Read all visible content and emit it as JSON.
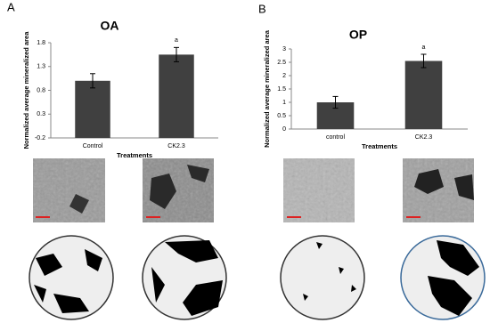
{
  "chart_data": [
    {
      "type": "bar",
      "panel_label": "A",
      "title": "OA",
      "y_label": "Normalized average mineralized area",
      "x_label": "Treatments",
      "categories": [
        "Control",
        "CK2.3"
      ],
      "values": [
        1.0,
        1.55
      ],
      "errors": [
        0.15,
        0.15
      ],
      "value_annotations": [
        null,
        "a"
      ],
      "color": "#404040",
      "ylim": [
        -0.2,
        1.8
      ],
      "yticks": [
        -0.2,
        0.3,
        0.8,
        1.3,
        1.8
      ]
    },
    {
      "type": "bar",
      "panel_label": "B",
      "title": "OP",
      "y_label": "Normalized average mineralized area",
      "x_label": "Treatments",
      "categories": [
        "control",
        "CK2.3"
      ],
      "values": [
        1.0,
        2.55
      ],
      "errors": [
        0.22,
        0.25
      ],
      "value_annotations": [
        null,
        "a"
      ],
      "color": "#404040",
      "ylim": [
        0,
        3
      ],
      "yticks": [
        0,
        0.5,
        1,
        1.5,
        2,
        2.5,
        3
      ]
    }
  ]
}
